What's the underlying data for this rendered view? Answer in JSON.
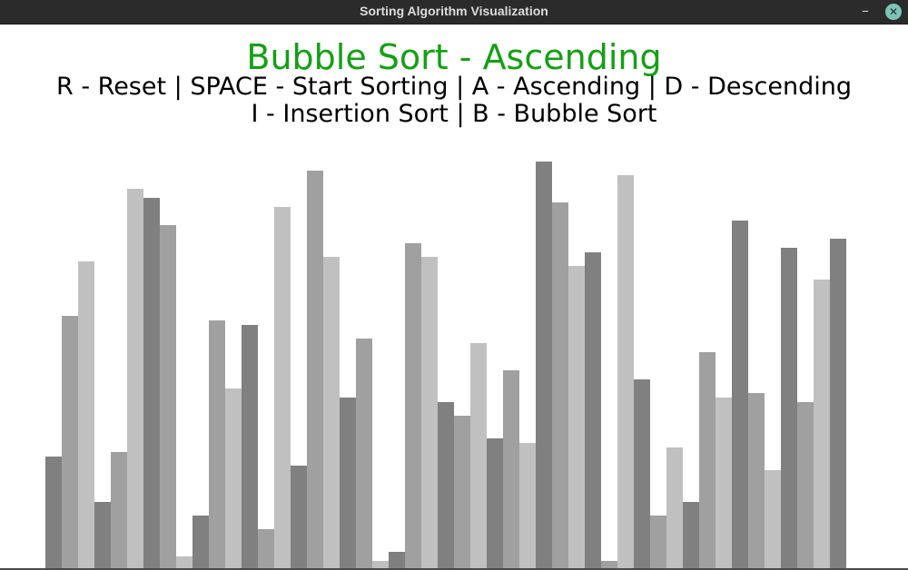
{
  "window": {
    "title": "Sorting Algorithm Visualization",
    "minimize_glyph": "–",
    "close_glyph": "✕"
  },
  "header": {
    "heading": "Bubble Sort - Ascending",
    "instructions_line1": "R - Reset | SPACE - Start Sorting | A - Ascending | D - Descending",
    "instructions_line2": "I - Insertion Sort | B - Bubble Sort"
  },
  "colors": {
    "heading": "#14a014",
    "bar_shades": [
      "#808080",
      "#a0a0a0",
      "#c0c0c0"
    ]
  },
  "chart_data": {
    "type": "bar",
    "values": [
      125,
      280,
      340,
      75,
      130,
      420,
      410,
      380,
      15,
      60,
      275,
      200,
      270,
      45,
      400,
      115,
      440,
      345,
      190,
      255,
      10,
      20,
      360,
      345,
      185,
      170,
      250,
      145,
      220,
      140,
      450,
      405,
      335,
      350,
      10,
      435,
      210,
      60,
      135,
      75,
      240,
      190,
      385,
      195,
      110,
      355,
      185,
      320,
      365
    ]
  }
}
